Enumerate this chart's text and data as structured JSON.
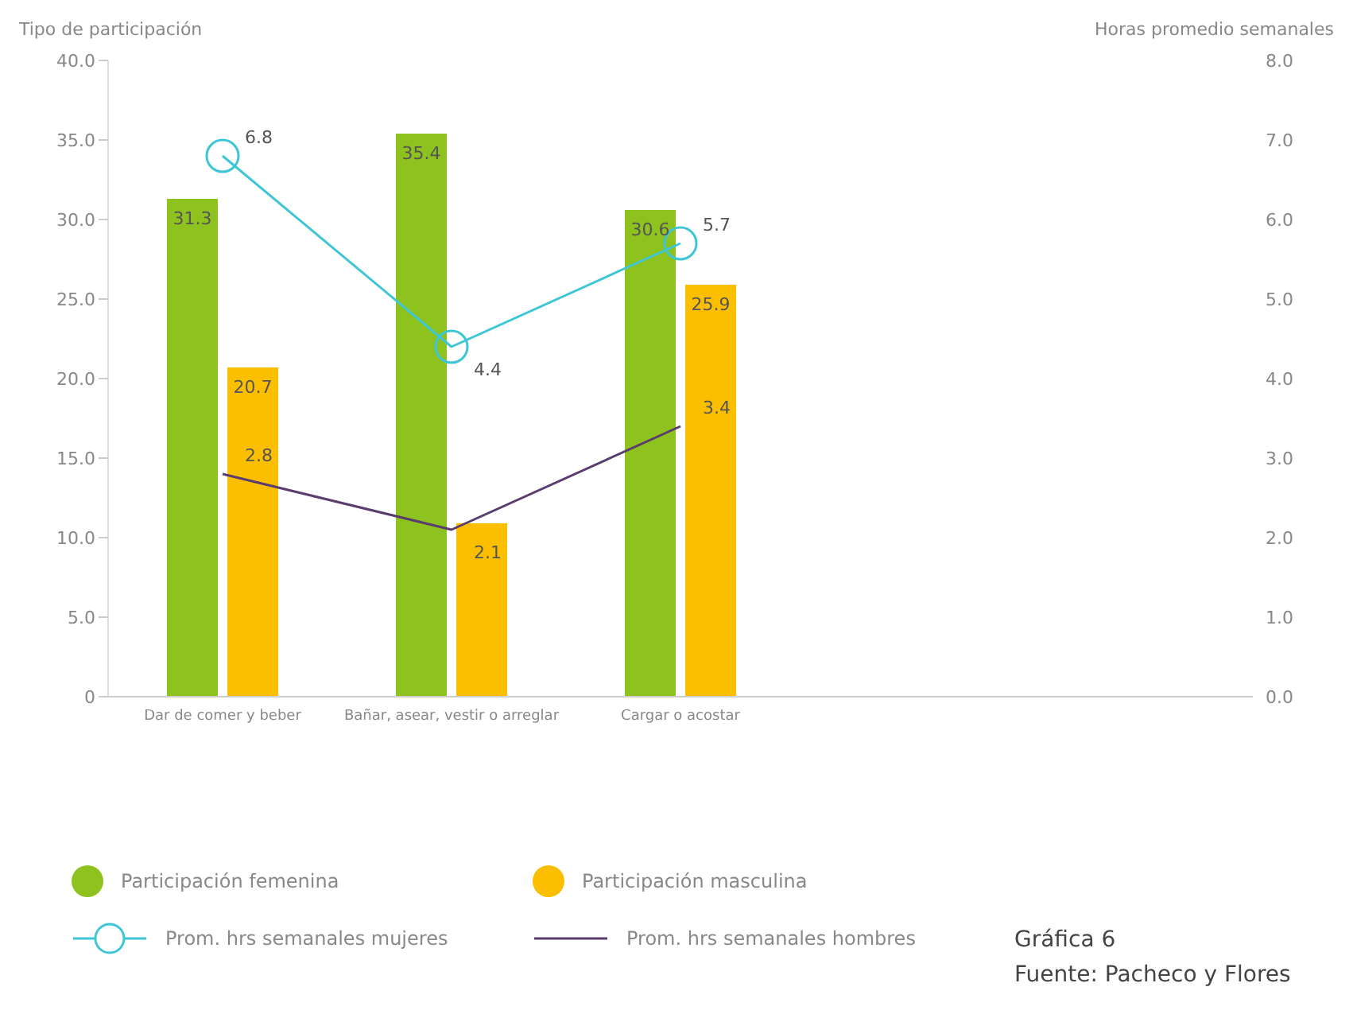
{
  "chart_data": {
    "type": "bar",
    "ylabel": "Tipo de participación",
    "y2label": "Horas promedio semanales",
    "categories": [
      "Dar de comer y beber",
      "Bañar, asear, vestir o arreglar",
      "Cargar o acostar",
      null,
      null
    ],
    "series": [
      {
        "name": "Participación femenina",
        "color": "#8dc21f",
        "values": [
          31.3,
          35.4,
          30.6,
          null,
          null
        ],
        "value_labels": [
          "31.3",
          "35.4",
          "30.6",
          null,
          null
        ]
      },
      {
        "name": "Participación masculina",
        "color": "#fcbf00",
        "values": [
          20.7,
          10.9,
          25.9,
          null,
          null
        ],
        "value_labels": [
          "20.7",
          null,
          "25.9",
          null,
          null
        ]
      },
      {
        "name": "Prom. hrs semanales mujeres",
        "type": "line",
        "axis": "y2",
        "marker": "circle",
        "color": "#3ec6d6",
        "values": [
          6.8,
          4.4,
          5.7,
          null,
          null
        ],
        "value_labels": [
          "6.8",
          "4.4",
          "5.7",
          null,
          null
        ]
      },
      {
        "name": "Prom. hrs semanales hombres",
        "type": "line",
        "axis": "y2",
        "marker": "none",
        "color": "#5a3d6e",
        "values": [
          2.8,
          2.1,
          3.4,
          null,
          null
        ],
        "value_labels": [
          "2.8",
          "2.1",
          "3.4",
          null,
          null
        ]
      }
    ],
    "ylim": [
      0,
      40
    ],
    "yticks": [
      {
        "value": 0,
        "label": "0"
      },
      {
        "value": 5,
        "label": "5.0"
      },
      {
        "value": 10,
        "label": "10.0"
      },
      {
        "value": 15,
        "label": "15.0"
      },
      {
        "value": 20,
        "label": "20.0"
      },
      {
        "value": 25,
        "label": "25.0"
      },
      {
        "value": 30,
        "label": "30.0"
      },
      {
        "value": 35,
        "label": "35.0"
      },
      {
        "value": 40,
        "label": "40.0"
      }
    ],
    "y2lim": [
      0,
      8
    ],
    "y2ticks": [
      {
        "value": 0,
        "label": "0.0"
      },
      {
        "value": 1,
        "label": "1.0"
      },
      {
        "value": 2,
        "label": "2.0"
      },
      {
        "value": 3,
        "label": "3.0"
      },
      {
        "value": 4,
        "label": "4.0"
      },
      {
        "value": 5,
        "label": "5.0"
      },
      {
        "value": 6,
        "label": "6.0"
      },
      {
        "value": 7,
        "label": "7.0"
      },
      {
        "value": 8,
        "label": "8.0"
      }
    ],
    "grid": false,
    "legend": "bottom left",
    "annotations": [
      "Gráfica 6",
      "Fuente: Pacheco y Flores"
    ]
  }
}
